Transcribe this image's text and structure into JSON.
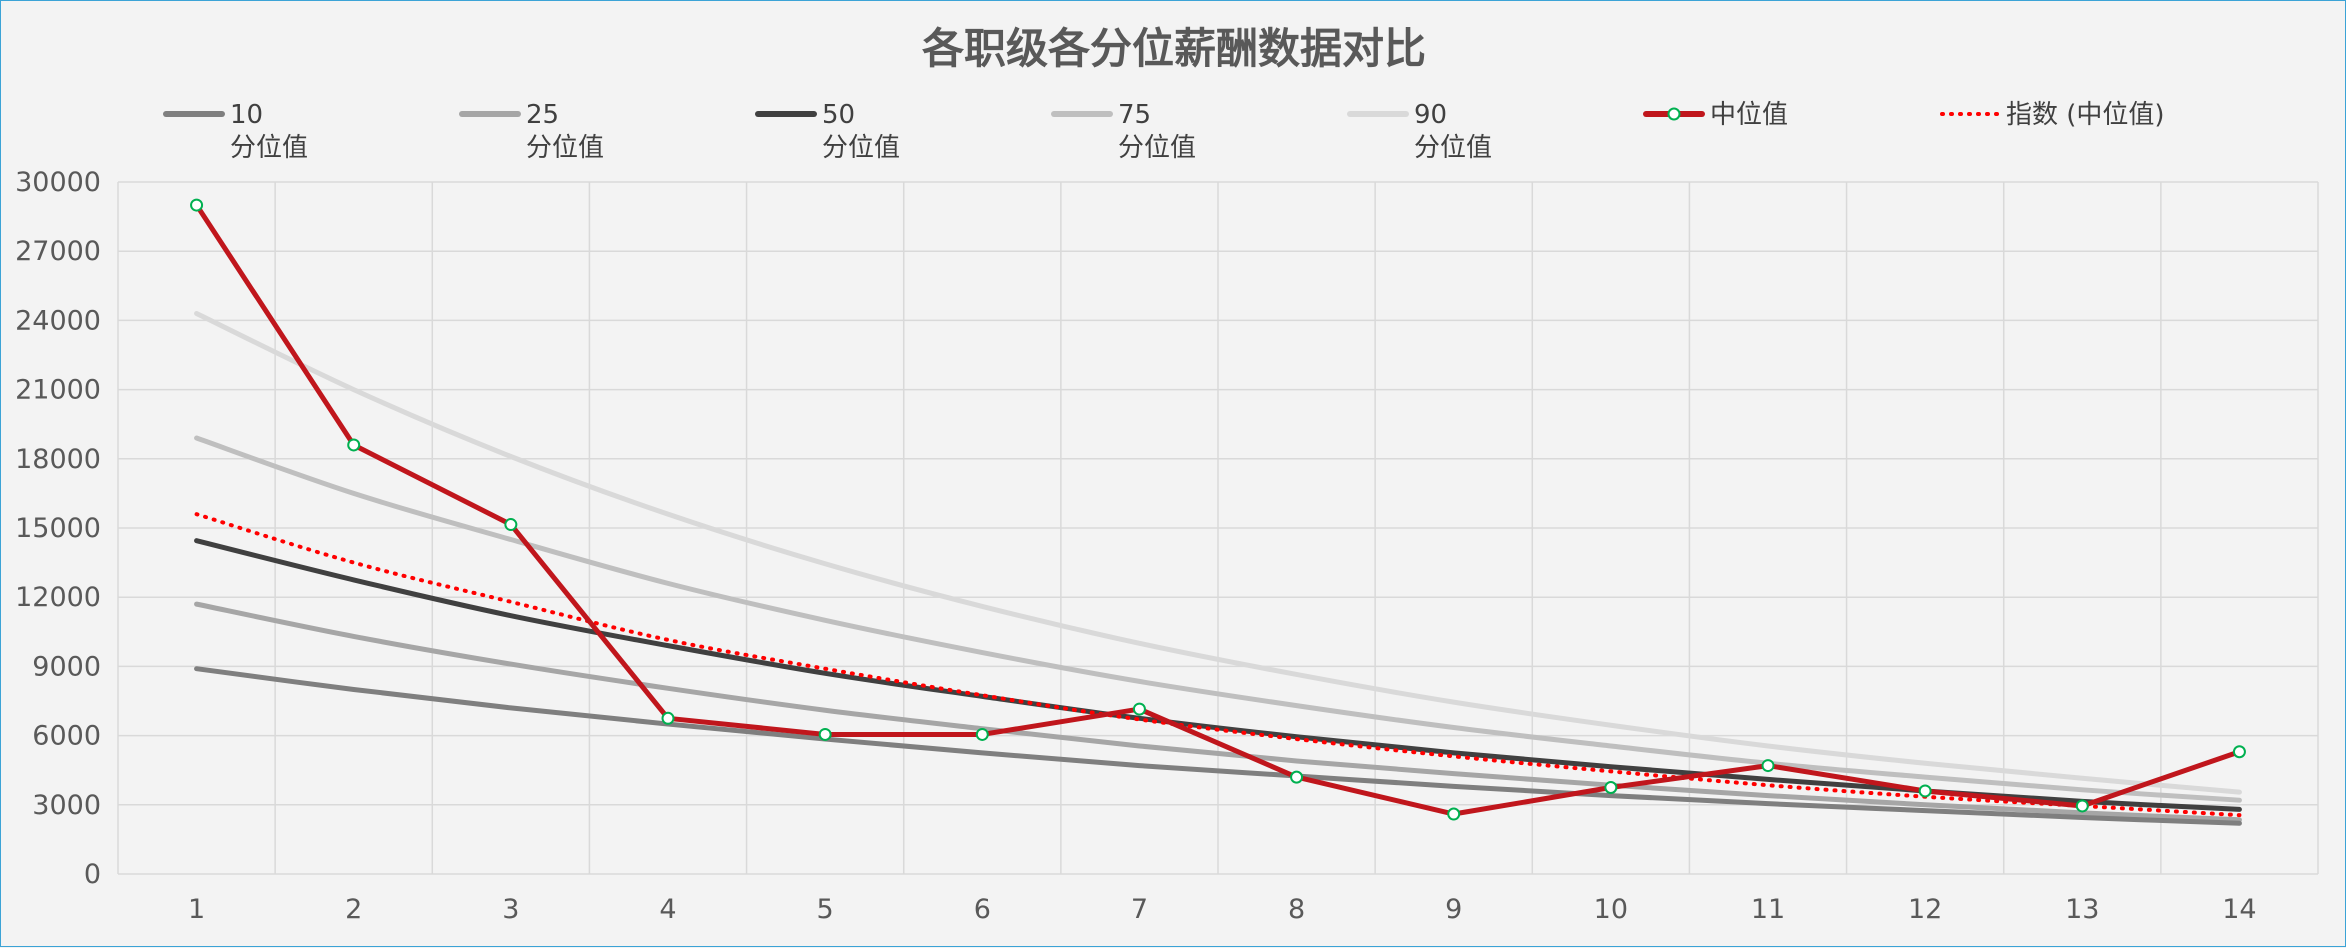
{
  "chart_data": {
    "type": "line",
    "title": "各职级各分位薪酬数据对比",
    "xlabel": "",
    "ylabel": "",
    "categories": [
      "1",
      "2",
      "3",
      "4",
      "5",
      "6",
      "7",
      "8",
      "9",
      "10",
      "11",
      "12",
      "13",
      "14"
    ],
    "ylim": [
      0,
      30000
    ],
    "yticks": [
      "0",
      "3000",
      "6000",
      "9000",
      "12000",
      "15000",
      "18000",
      "21000",
      "24000",
      "27000",
      "30000"
    ],
    "grid": true,
    "legend_position": "top",
    "series": [
      {
        "name_line1": "10",
        "name_line2": "分位值",
        "color": "#7f7f7f",
        "width": 5,
        "style": "solid",
        "markers": false,
        "values": [
          8900,
          8000,
          7200,
          6500,
          5850,
          5250,
          4700,
          4250,
          3800,
          3400,
          3050,
          2750,
          2450,
          2200
        ]
      },
      {
        "name_line1": "25",
        "name_line2": "分位值",
        "color": "#a6a6a6",
        "width": 5,
        "style": "solid",
        "markers": false,
        "values": [
          11700,
          10300,
          9100,
          8050,
          7100,
          6300,
          5550,
          4900,
          4350,
          3850,
          3400,
          3000,
          2650,
          2350
        ]
      },
      {
        "name_line1": "50",
        "name_line2": "分位值",
        "color": "#404040",
        "width": 5,
        "style": "solid",
        "markers": false,
        "values": [
          14450,
          12750,
          11200,
          9900,
          8700,
          7700,
          6750,
          5950,
          5250,
          4650,
          4100,
          3600,
          3150,
          2800
        ]
      },
      {
        "name_line1": "75",
        "name_line2": "分位值",
        "color": "#bfbfbf",
        "width": 5,
        "style": "solid",
        "markers": false,
        "values": [
          18900,
          16500,
          14500,
          12600,
          11000,
          9600,
          8350,
          7300,
          6350,
          5550,
          4800,
          4200,
          3650,
          3200
        ]
      },
      {
        "name_line1": "90",
        "name_line2": "分位值",
        "color": "#d9d9d9",
        "width": 5,
        "style": "solid",
        "markers": false,
        "values": [
          24300,
          21000,
          18100,
          15600,
          13450,
          11600,
          10000,
          8650,
          7450,
          6450,
          5550,
          4800,
          4150,
          3550
        ]
      },
      {
        "name_line1": "中位值",
        "name_line2": "",
        "color": "#c0161c",
        "width": 5,
        "style": "solid",
        "markers": true,
        "marker_fill": "#ffffff",
        "marker_stroke": "#00b050",
        "values": [
          29000,
          18600,
          15150,
          6750,
          6050,
          6050,
          7150,
          4200,
          2600,
          3750,
          4700,
          3600,
          2950,
          5300
        ]
      },
      {
        "name_line1": "指数 (中位值)",
        "name_line2": "",
        "color": "#ff0000",
        "width": 4,
        "style": "dotted",
        "markers": false,
        "values": [
          15600,
          13500,
          11800,
          10150,
          8900,
          7750,
          6700,
          5850,
          5100,
          4450,
          3850,
          3350,
          2950,
          2550
        ]
      }
    ]
  }
}
